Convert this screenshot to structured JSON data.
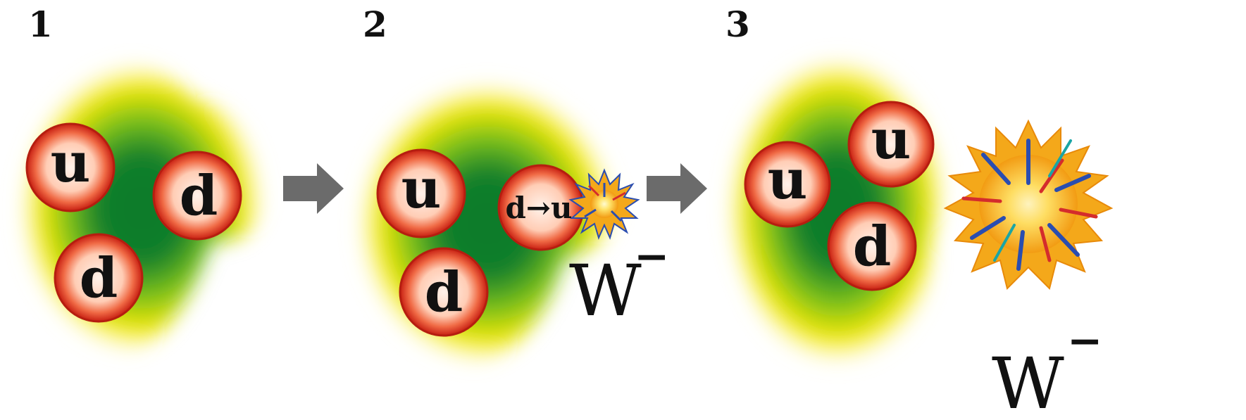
{
  "steps": [
    {
      "number": "1",
      "quarks": [
        "u",
        "d",
        "d"
      ]
    },
    {
      "number": "2",
      "quarks": [
        "u",
        "d→u",
        "d"
      ],
      "emitted": "W",
      "emitted_charge": "−"
    },
    {
      "number": "3",
      "quarks": [
        "u",
        "u",
        "d"
      ],
      "emitted": "W",
      "emitted_charge": "−"
    }
  ],
  "transition": {
    "from": "d",
    "to": "u"
  },
  "colors": {
    "cloud_core": "#0a7a2a",
    "cloud_mid": "#7cc21a",
    "cloud_edge": "#f5e800",
    "quark_fill": "#ffd9c8",
    "quark_rim": "#d92b1a",
    "arrow": "#6b6b6b",
    "boson_outer": "#f4a81a",
    "boson_inner": "#fff5a0",
    "boson_spike": "#2a4db0"
  },
  "icons": [
    "arrow-right-icon",
    "w-boson-burst-icon"
  ]
}
